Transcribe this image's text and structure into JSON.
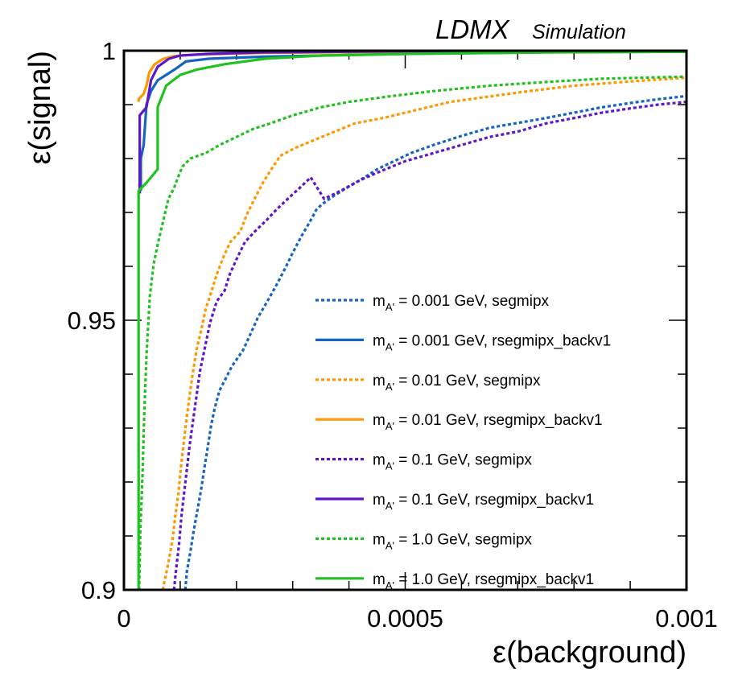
{
  "chart_data": {
    "type": "line",
    "brand": "LDMX",
    "brand_sub": "Simulation",
    "xlabel": "ε(background)",
    "ylabel": "ε(signal)",
    "xlim": [
      0,
      0.001
    ],
    "ylim": [
      0.9,
      1.0
    ],
    "x_ticks": [
      {
        "value": 0,
        "label": "0"
      },
      {
        "value": 0.0005,
        "label": "0.0005"
      },
      {
        "value": 0.001,
        "label": "0.001"
      }
    ],
    "y_ticks": [
      {
        "value": 0.9,
        "label": "0.9"
      },
      {
        "value": 0.95,
        "label": "0.95"
      },
      {
        "value": 1.0,
        "label": "1"
      }
    ],
    "legend_position": "lower-right",
    "series": [
      {
        "name": "0.001 GeV, segmipx",
        "mass_label": "m",
        "mass_sub": "A'",
        "color": "#1565c0",
        "style": "dotted",
        "points": [
          [
            0.000109,
            0.9
          ],
          [
            0.000112,
            0.9035
          ],
          [
            0.000118,
            0.907
          ],
          [
            0.000124,
            0.911
          ],
          [
            0.000131,
            0.915
          ],
          [
            0.000137,
            0.9185
          ],
          [
            0.000142,
            0.922
          ],
          [
            0.000149,
            0.9265
          ],
          [
            0.000155,
            0.9305
          ],
          [
            0.000161,
            0.9335
          ],
          [
            0.00017,
            0.937
          ],
          [
            0.00018,
            0.939
          ],
          [
            0.000192,
            0.9415
          ],
          [
            0.000212,
            0.9445
          ],
          [
            0.000225,
            0.9475
          ],
          [
            0.000238,
            0.9505
          ],
          [
            0.000255,
            0.9535
          ],
          [
            0.000271,
            0.9565
          ],
          [
            0.000286,
            0.9595
          ],
          [
            0.0003,
            0.9625
          ],
          [
            0.000315,
            0.9655
          ],
          [
            0.000329,
            0.968
          ],
          [
            0.000342,
            0.9705
          ],
          [
            0.000352,
            0.9715
          ],
          [
            0.000372,
            0.973
          ],
          [
            0.000395,
            0.9745
          ],
          [
            0.00042,
            0.976
          ],
          [
            0.00045,
            0.978
          ],
          [
            0.00048,
            0.9795
          ],
          [
            0.00051,
            0.981
          ],
          [
            0.00055,
            0.9825
          ],
          [
            0.0006,
            0.9842
          ],
          [
            0.00065,
            0.9857
          ],
          [
            0.0007,
            0.9866
          ],
          [
            0.00075,
            0.9875
          ],
          [
            0.0008,
            0.9885
          ],
          [
            0.00085,
            0.9895
          ],
          [
            0.0009,
            0.9903
          ],
          [
            0.00095,
            0.991
          ],
          [
            0.001,
            0.9916
          ]
        ]
      },
      {
        "name": "0.001 GeV, rsegmipx_backv1",
        "mass_label": "m",
        "mass_sub": "A'",
        "color": "#1565c0",
        "style": "solid",
        "points": [
          [
            3e-05,
            0.974
          ],
          [
            3e-05,
            0.98
          ],
          [
            3.5e-05,
            0.9825
          ],
          [
            4e-05,
            0.99
          ],
          [
            4.8e-05,
            0.9925
          ],
          [
            6e-05,
            0.9945
          ],
          [
            7.5e-05,
            0.9955
          ],
          [
            9e-05,
            0.9965
          ],
          [
            0.00011,
            0.998
          ],
          [
            0.00015,
            0.9985
          ],
          [
            0.00025,
            0.9989
          ],
          [
            0.0005,
            0.9994
          ],
          [
            0.00075,
            0.9997
          ],
          [
            0.001,
            0.9998
          ]
        ]
      },
      {
        "name": "0.01 GeV, segmipx",
        "mass_label": "m",
        "mass_sub": "A'",
        "color": "#ff9800",
        "style": "dotted",
        "points": [
          [
            6.9e-05,
            0.9
          ],
          [
            7.8e-05,
            0.9045
          ],
          [
            8.6e-05,
            0.909
          ],
          [
            9.1e-05,
            0.9135
          ],
          [
            9.7e-05,
            0.918
          ],
          [
            0.000101,
            0.9225
          ],
          [
            0.000106,
            0.927
          ],
          [
            0.000111,
            0.9315
          ],
          [
            0.000116,
            0.9355
          ],
          [
            0.000122,
            0.94
          ],
          [
            0.000129,
            0.9445
          ],
          [
            0.000138,
            0.9485
          ],
          [
            0.000145,
            0.952
          ],
          [
            0.000156,
            0.9555
          ],
          [
            0.000165,
            0.9585
          ],
          [
            0.000176,
            0.9615
          ],
          [
            0.000189,
            0.9645
          ],
          [
            0.000207,
            0.9665
          ],
          [
            0.000218,
            0.9695
          ],
          [
            0.000232,
            0.9725
          ],
          [
            0.000247,
            0.9755
          ],
          [
            0.000262,
            0.978
          ],
          [
            0.000278,
            0.9805
          ],
          [
            0.000305,
            0.982
          ],
          [
            0.00034,
            0.9835
          ],
          [
            0.000375,
            0.985
          ],
          [
            0.00041,
            0.9865
          ],
          [
            0.00046,
            0.9875
          ],
          [
            0.00052,
            0.989
          ],
          [
            0.00058,
            0.9905
          ],
          [
            0.00065,
            0.9915
          ],
          [
            0.00072,
            0.9925
          ],
          [
            0.0008,
            0.9935
          ],
          [
            0.0009,
            0.9943
          ],
          [
            0.001,
            0.995
          ]
        ]
      },
      {
        "name": "0.01 GeV, rsegmipx_backv1",
        "mass_label": "m",
        "mass_sub": "A'",
        "color": "#ff9800",
        "style": "solid",
        "points": [
          [
            2.6e-05,
            0.9905
          ],
          [
            2.6e-05,
            0.991
          ],
          [
            3.5e-05,
            0.992
          ],
          [
            4e-05,
            0.9935
          ],
          [
            4.5e-05,
            0.996
          ],
          [
            5.5e-05,
            0.9975
          ],
          [
            7e-05,
            0.9985
          ],
          [
            9e-05,
            0.999
          ],
          [
            0.00013,
            0.9993
          ],
          [
            0.00025,
            0.9996
          ],
          [
            0.0005,
            0.9998
          ],
          [
            0.001,
            0.9999
          ]
        ]
      },
      {
        "name": "0.1 GeV, segmipx",
        "mass_label": "m",
        "mass_sub": "A'",
        "color": "#5e17c8",
        "style": "dotted",
        "points": [
          [
            8.9e-05,
            0.9
          ],
          [
            9.3e-05,
            0.904
          ],
          [
            9.8e-05,
            0.9085
          ],
          [
            0.000102,
            0.9135
          ],
          [
            0.000107,
            0.918
          ],
          [
            0.000112,
            0.9225
          ],
          [
            0.000117,
            0.927
          ],
          [
            0.000123,
            0.9315
          ],
          [
            0.000129,
            0.936
          ],
          [
            0.000135,
            0.9405
          ],
          [
            0.000144,
            0.945
          ],
          [
            0.000153,
            0.9495
          ],
          [
            0.000165,
            0.9535
          ],
          [
            0.000179,
            0.9555
          ],
          [
            0.000188,
            0.9585
          ],
          [
            0.000201,
            0.9615
          ],
          [
            0.000215,
            0.9645
          ],
          [
            0.000233,
            0.9665
          ],
          [
            0.000253,
            0.9685
          ],
          [
            0.000271,
            0.9705
          ],
          [
            0.000291,
            0.9725
          ],
          [
            0.000312,
            0.9745
          ],
          [
            0.000332,
            0.9765
          ],
          [
            0.000356,
            0.9725
          ],
          [
            0.000385,
            0.974
          ],
          [
            0.00042,
            0.976
          ],
          [
            0.00046,
            0.9778
          ],
          [
            0.0005,
            0.9795
          ],
          [
            0.00055,
            0.981
          ],
          [
            0.0006,
            0.9825
          ],
          [
            0.00065,
            0.984
          ],
          [
            0.0007,
            0.985
          ],
          [
            0.00075,
            0.9865
          ],
          [
            0.0008,
            0.9875
          ],
          [
            0.00085,
            0.9885
          ],
          [
            0.0009,
            0.9893
          ],
          [
            0.00095,
            0.99
          ],
          [
            0.001,
            0.9905
          ]
        ]
      },
      {
        "name": "0.1 GeV, rsegmipx_backv1",
        "mass_label": "m",
        "mass_sub": "A'",
        "color": "#5e17c8",
        "style": "solid",
        "points": [
          [
            2.8e-05,
            0.9735
          ],
          [
            2.8e-05,
            0.988
          ],
          [
            4e-05,
            0.9895
          ],
          [
            4.8e-05,
            0.9945
          ],
          [
            6e-05,
            0.997
          ],
          [
            8e-05,
            0.9985
          ],
          [
            0.0001,
            0.9991
          ],
          [
            0.00015,
            0.9994
          ],
          [
            0.00025,
            0.9997
          ],
          [
            0.0005,
            0.9999
          ],
          [
            0.001,
            1.0
          ]
        ]
      },
      {
        "name": "1.0 GeV, segmipx",
        "mass_label": "m",
        "mass_sub": "A'",
        "color": "#1fc21f",
        "style": "dotted",
        "points": [
          [
            2.7e-05,
            0.9
          ],
          [
            2.9e-05,
            0.9105
          ],
          [
            3.3e-05,
            0.9215
          ],
          [
            3.6e-05,
            0.9325
          ],
          [
            4e-05,
            0.9435
          ],
          [
            4.6e-05,
            0.9545
          ],
          [
            5.3e-05,
            0.9605
          ],
          [
            6.1e-05,
            0.9645
          ],
          [
            7e-05,
            0.9685
          ],
          [
            7.9e-05,
            0.9725
          ],
          [
            8.9e-05,
            0.9745
          ],
          [
            9.6e-05,
            0.9765
          ],
          [
            0.000104,
            0.9785
          ],
          [
            0.000118,
            0.98
          ],
          [
            0.000145,
            0.981
          ],
          [
            0.00017,
            0.9825
          ],
          [
            0.0002,
            0.984
          ],
          [
            0.00023,
            0.9855
          ],
          [
            0.00026,
            0.9865
          ],
          [
            0.0003,
            0.988
          ],
          [
            0.00035,
            0.9895
          ],
          [
            0.0004,
            0.9905
          ],
          [
            0.00047,
            0.9915
          ],
          [
            0.00055,
            0.9925
          ],
          [
            0.00065,
            0.9935
          ],
          [
            0.00075,
            0.9942
          ],
          [
            0.00085,
            0.9948
          ],
          [
            0.001,
            0.9952
          ]
        ]
      },
      {
        "name": "1.0 GeV, rsegmipx_backv1",
        "mass_label": "m",
        "mass_sub": "A'",
        "color": "#1fc21f",
        "style": "solid",
        "points": [
          [
            2.6e-05,
            0.9
          ],
          [
            2.6e-05,
            0.974
          ],
          [
            4e-05,
            0.9755
          ],
          [
            6e-05,
            0.978
          ],
          [
            6e-05,
            0.9895
          ],
          [
            7.5e-05,
            0.9935
          ],
          [
            0.0001,
            0.9955
          ],
          [
            0.00013,
            0.9965
          ],
          [
            0.00018,
            0.9975
          ],
          [
            0.00025,
            0.9985
          ],
          [
            0.00035,
            0.9991
          ],
          [
            0.0005,
            0.9994
          ],
          [
            0.00075,
            0.9997
          ],
          [
            0.001,
            0.9998
          ]
        ]
      }
    ]
  }
}
